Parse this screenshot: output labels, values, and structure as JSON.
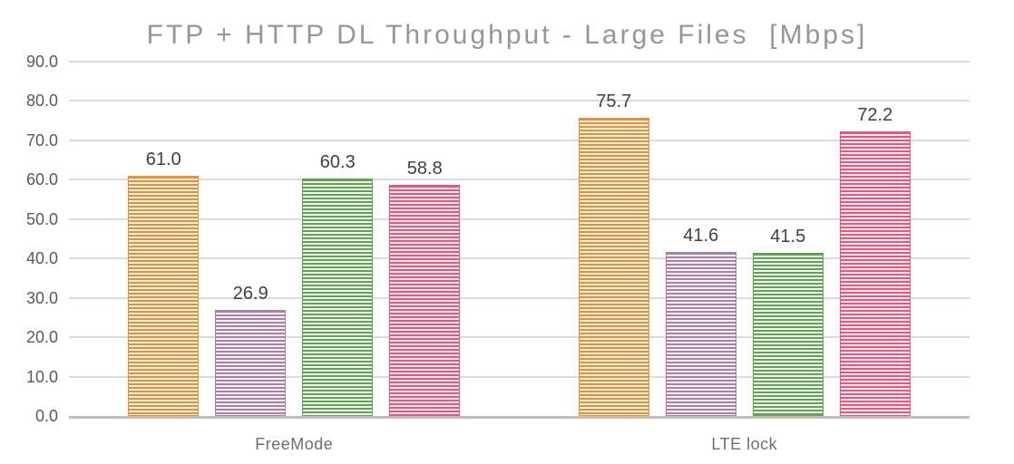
{
  "chart_data": {
    "type": "bar",
    "title": "FTP + HTTP DL Throughput - Large Files  [Mbps]",
    "categories": [
      "FreeMode",
      "LTE lock"
    ],
    "series": [
      {
        "name": "orange",
        "stripe_color": "#ED8D33",
        "tint_color": "#FBE9D4",
        "values": [
          61.0,
          75.7
        ],
        "labels": [
          "61.0",
          "75.7"
        ]
      },
      {
        "name": "purple",
        "stripe_color": "#AB7FA7",
        "tint_color": "#EFE5EE",
        "values": [
          26.9,
          41.6
        ],
        "labels": [
          "26.9",
          "41.6"
        ]
      },
      {
        "name": "green",
        "stripe_color": "#60A355",
        "tint_color": "#E5F0E0",
        "values": [
          60.3,
          41.5
        ],
        "labels": [
          "60.3",
          "41.5"
        ]
      },
      {
        "name": "pink",
        "stripe_color": "#F2517A",
        "tint_color": "#FDDFE7",
        "values": [
          58.8,
          72.2
        ],
        "labels": [
          "58.8",
          "72.2"
        ]
      }
    ],
    "ylim": [
      0,
      90
    ],
    "ytick_labels": [
      "0.0",
      "10.0",
      "20.0",
      "30.0",
      "40.0",
      "50.0",
      "60.0",
      "70.0",
      "80.0",
      "90.0"
    ],
    "grid": "horizontal",
    "legend": "none",
    "pattern_fill": "horizontal-stripes",
    "data_labels_shown": true,
    "styles": {
      "title_color": "#969696",
      "tick_label_color": "#595959",
      "data_label_color": "#404040",
      "category_label_color": "#6E6E6E",
      "gridline_color": "#DCDCDC",
      "axis_line_color": "#BFBFBF",
      "background": "#FFFFFF"
    }
  }
}
